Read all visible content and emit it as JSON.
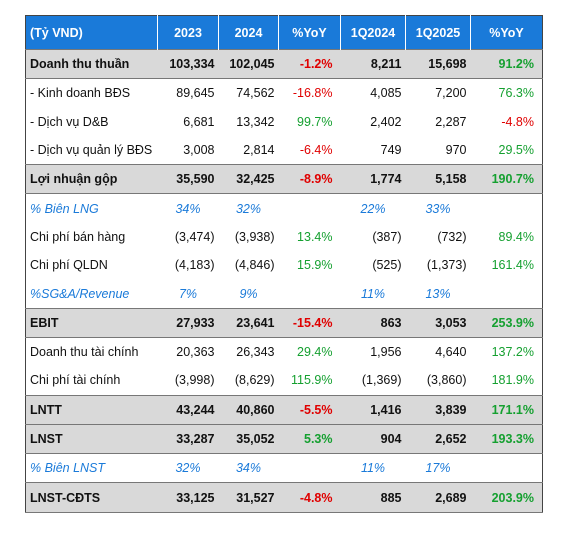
{
  "table": {
    "header": [
      "(Tỷ VND)",
      "2023",
      "2024",
      "%YoY",
      "1Q2024",
      "1Q2025",
      "%YoY"
    ],
    "rows": [
      [
        "Doanh thu thuần",
        "103,334",
        "102,045",
        "-1.2%",
        "8,211",
        "15,698",
        "91.2%"
      ],
      [
        "- Kinh doanh BĐS",
        "89,645",
        "74,562",
        "-16.8%",
        "4,085",
        "7,200",
        "76.3%"
      ],
      [
        "- Dịch vụ D&B",
        "6,681",
        "13,342",
        "99.7%",
        "2,402",
        "2,287",
        "-4.8%"
      ],
      [
        "- Dịch vụ quản lý BĐS",
        "3,008",
        "2,814",
        "-6.4%",
        "749",
        "970",
        "29.5%"
      ],
      [
        "Lợi nhuận gộp",
        "35,590",
        "32,425",
        "-8.9%",
        "1,774",
        "5,158",
        "190.7%"
      ],
      [
        "% Biên LNG",
        "34%",
        "32%",
        null,
        "22%",
        "33%",
        null
      ],
      [
        "Chi phí bán hàng",
        "(3,474)",
        "(3,938)",
        "13.4%",
        "(387)",
        "(732)",
        "89.4%"
      ],
      [
        "Chi phí QLDN",
        "(4,183)",
        "(4,846)",
        "15.9%",
        "(525)",
        "(1,373)",
        "161.4%"
      ],
      [
        "%SG&A/Revenue",
        "7%",
        "9%",
        null,
        "11%",
        "13%",
        null
      ],
      [
        "EBIT",
        "27,933",
        "23,641",
        "-15.4%",
        "863",
        "3,053",
        "253.9%"
      ],
      [
        "Doanh thu tài chính",
        "20,363",
        "26,343",
        "29.4%",
        "1,956",
        "4,640",
        "137.2%"
      ],
      [
        "Chi phí tài chính",
        "(3,998)",
        "(8,629)",
        "115.9%",
        "(1,369)",
        "(3,860)",
        "181.9%"
      ],
      [
        "LNTT",
        "43,244",
        "40,860",
        "-5.5%",
        "1,416",
        "3,839",
        "171.1%"
      ],
      [
        "LNST",
        "33,287",
        "35,052",
        "5.3%",
        "904",
        "2,652",
        "193.3%"
      ],
      [
        "% Biên LNST",
        "32%",
        "34%",
        null,
        "11%",
        "17%",
        null
      ],
      [
        "LNST-CĐTS",
        "33,125",
        "31,527",
        "-4.8%",
        "885",
        "2,689",
        "203.9%"
      ]
    ]
  }
}
